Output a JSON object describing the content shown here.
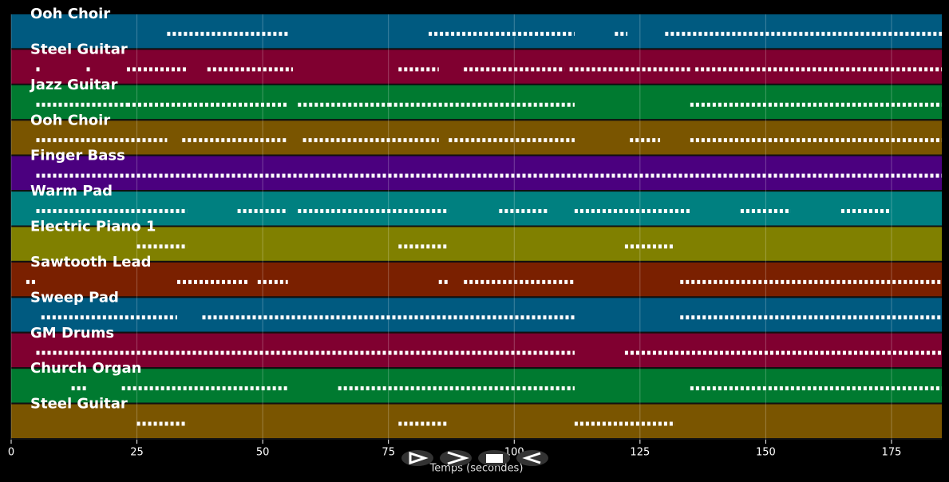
{
  "chart_data": {
    "type": "timeline",
    "x_label": "Temps (secondes)",
    "xlim": [
      0,
      185
    ],
    "xticks": [
      0,
      25,
      50,
      75,
      100,
      125,
      150,
      175
    ],
    "grid": true,
    "tracks": [
      {
        "name": "Ooh Choir",
        "color": "#005a80",
        "notes": [
          [
            31,
            55
          ],
          [
            83,
            112
          ],
          [
            120,
            122.5
          ],
          [
            130,
            185
          ]
        ]
      },
      {
        "name": "Steel Guitar",
        "color": "#800030",
        "notes": [
          [
            5,
            6
          ],
          [
            15,
            16
          ],
          [
            23,
            35
          ],
          [
            39,
            56
          ],
          [
            77,
            85
          ],
          [
            90,
            110
          ],
          [
            111,
            135
          ],
          [
            136,
            185
          ]
        ]
      },
      {
        "name": "Jazz Guitar",
        "color": "#007a30",
        "notes": [
          [
            5,
            23
          ],
          [
            23,
            55
          ],
          [
            57,
            75
          ],
          [
            75,
            112
          ],
          [
            135,
            185
          ]
        ]
      },
      {
        "name": "Ooh Choir",
        "color": "#7a5500",
        "notes": [
          [
            5,
            31
          ],
          [
            34,
            55
          ],
          [
            58,
            85
          ],
          [
            87,
            112
          ],
          [
            123,
            129
          ],
          [
            135,
            185
          ]
        ]
      },
      {
        "name": "Finger Bass",
        "color": "#4b007f",
        "notes": [
          [
            5,
            185
          ]
        ]
      },
      {
        "name": "Warm Pad",
        "color": "#008080",
        "notes": [
          [
            5,
            35
          ],
          [
            45,
            55
          ],
          [
            57,
            87
          ],
          [
            97,
            107
          ],
          [
            112,
            135
          ],
          [
            145,
            155
          ],
          [
            165,
            175
          ]
        ]
      },
      {
        "name": "Electric Piano 1",
        "color": "#808000",
        "notes": [
          [
            25,
            35
          ],
          [
            77,
            87
          ],
          [
            122,
            132
          ]
        ]
      },
      {
        "name": "Sawtooth Lead",
        "color": "#7a2000",
        "notes": [
          [
            3,
            5
          ],
          [
            33,
            47
          ],
          [
            49,
            55
          ],
          [
            85,
            87
          ],
          [
            90,
            112
          ],
          [
            133,
            185
          ]
        ]
      },
      {
        "name": "Sweep Pad",
        "color": "#005a80",
        "notes": [
          [
            6,
            33
          ],
          [
            38,
            112
          ],
          [
            133,
            185
          ]
        ]
      },
      {
        "name": "GM Drums",
        "color": "#800030",
        "notes": [
          [
            5,
            112
          ],
          [
            122,
            185
          ]
        ]
      },
      {
        "name": "Church Organ",
        "color": "#007a30",
        "notes": [
          [
            12,
            15
          ],
          [
            22,
            55
          ],
          [
            65,
            112
          ],
          [
            135,
            185
          ]
        ]
      },
      {
        "name": "Steel Guitar",
        "color": "#7a5500",
        "notes": [
          [
            25,
            35
          ],
          [
            77,
            87
          ],
          [
            112,
            132
          ]
        ]
      }
    ]
  }
}
